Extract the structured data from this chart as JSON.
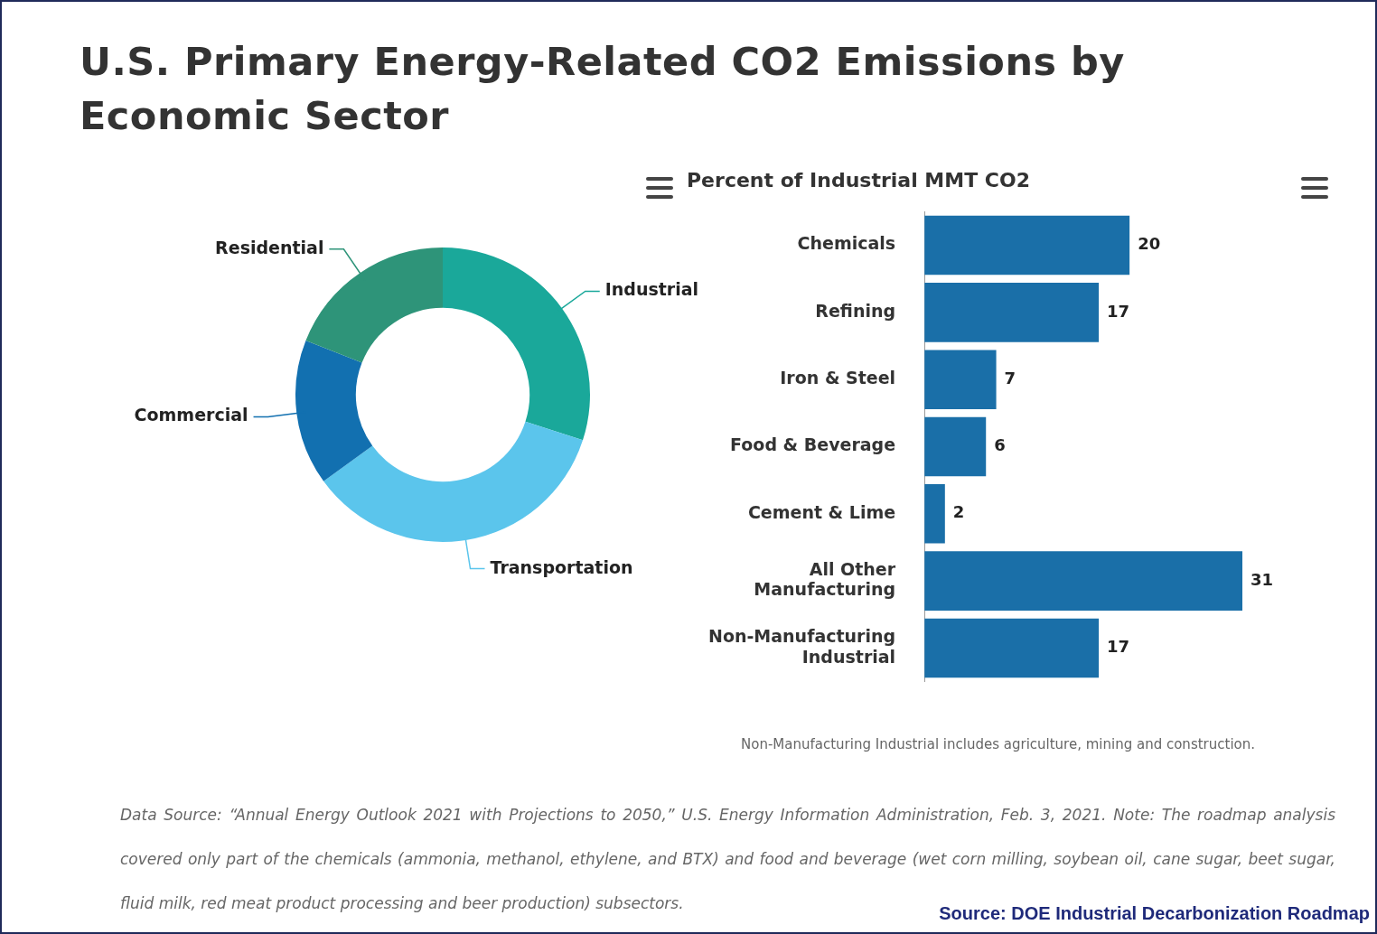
{
  "chart_data": [
    {
      "type": "donut",
      "title": "U.S. Primary Energy-Related CO2 Emissions by Economic Sector",
      "categories": [
        "Industrial",
        "Transportation",
        "Commercial",
        "Residential"
      ],
      "values": [
        30,
        35,
        16,
        19
      ],
      "colors": [
        "#1aa89a",
        "#5bc5ec",
        "#1270b0",
        "#2e9479"
      ],
      "legend": false,
      "annotations": [
        "Data Source: “Annual Energy Outlook 2021 with Projections to 2050,” U.S. Energy Information Administration, Feb. 3, 2021. Note: The roadmap analysis covered only part of the chemicals (ammonia, methanol, ethylene, and BTX) and food and beverage (wet corn milling, soybean oil, cane sugar, beet sugar, fluid milk, red meat product processing and beer production) subsectors.",
        "Source: DOE Industrial Decarbonization Roadmap"
      ]
    },
    {
      "type": "bar",
      "orientation": "horizontal",
      "title": "Percent of Industrial MMT CO2",
      "categories": [
        "Chemicals",
        "Refining",
        "Iron & Steel",
        "Food & Beverage",
        "Cement & Lime",
        "All Other Manufacturing",
        "Non-Manufacturing Industrial"
      ],
      "values": [
        20,
        17,
        7,
        6,
        2,
        31,
        17
      ],
      "color": "#1a6fa8",
      "data_labels": true,
      "tick_labels": "y",
      "legend": false,
      "annotations": [
        "Non-Manufacturing Industrial includes agriculture, mining and construction."
      ]
    }
  ]
}
